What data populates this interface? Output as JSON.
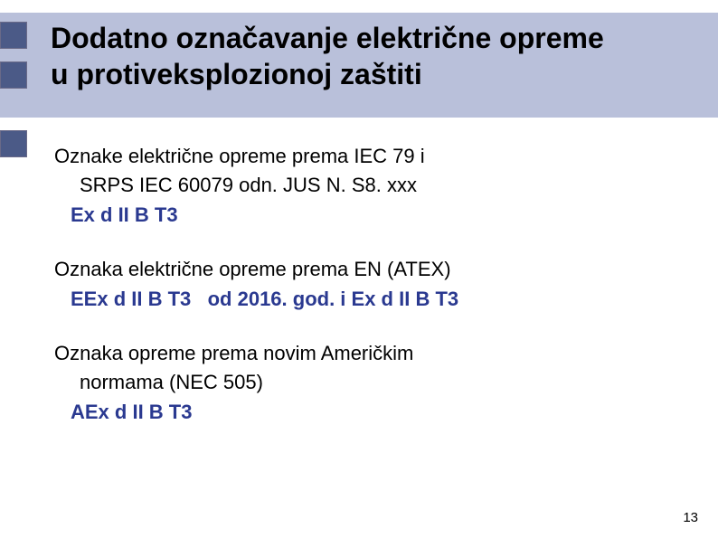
{
  "colors": {
    "title_background": "#b9c0da",
    "decoration_fill": "#4b5a87",
    "accent_blue": "#2a3990",
    "page_background": "#ffffff",
    "text_color": "#000000"
  },
  "typography": {
    "title_fontsize_pt": 24,
    "body_fontsize_pt": 17,
    "pagenum_fontsize_pt": 11,
    "title_weight": "bold",
    "font_family": "Arial"
  },
  "title": {
    "line1": "Dodatno označavanje električne opreme",
    "line2": "u protiveksplozionoj zaštiti"
  },
  "sections": [
    {
      "heading": "Oznake električne opreme prema IEC 79  i",
      "sub": "SRPS IEC 60079 odn.  JUS N. S8. xxx",
      "code": "Ex d II B T3"
    },
    {
      "heading": "Oznaka električne opreme prema EN (ATEX)",
      "code": "EEx d II B T3",
      "code_tail": "od 2016. god.  i  Ex d II B T3"
    },
    {
      "heading": "Oznaka opreme prema novim Američkim",
      "sub": "normama  (NEC 505)",
      "code": "AEx d II B T3"
    }
  ],
  "page_number": "13"
}
